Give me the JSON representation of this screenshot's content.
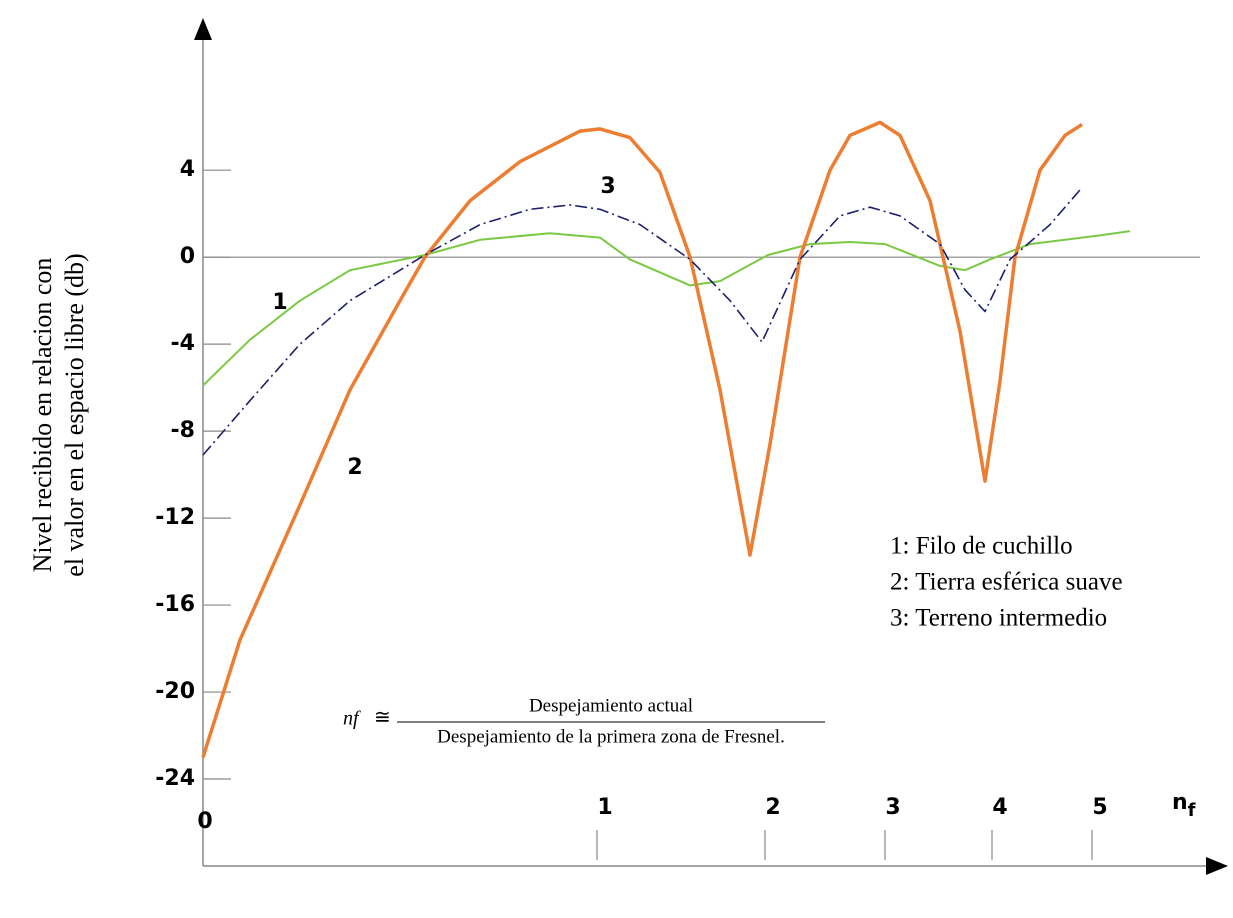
{
  "chart_data": {
    "type": "line",
    "y_label": [
      "Nivel recibido en relacion con",
      "el valor en el espacio libre (db)"
    ],
    "x_label": {
      "main": "n",
      "sub": "f"
    },
    "xlim": [
      0,
      6.3
    ],
    "ylim": [
      -28,
      11
    ],
    "xticks": [
      0,
      1,
      2,
      3,
      4,
      5
    ],
    "yticks": [
      4,
      0,
      -4,
      -8,
      -12,
      -16,
      -20,
      -24
    ],
    "zero_line": true,
    "series": [
      {
        "name": "1: Filo de cuchillo",
        "label": "1",
        "color": "#7ac943",
        "style": "solid",
        "x": [
          0,
          0.119,
          0.246,
          0.373,
          0.563,
          0.703,
          0.88,
          1.018,
          1.196,
          1.554,
          1.732,
          2.024,
          2.375,
          2.708,
          3.0,
          3.514,
          3.748,
          3.98,
          4.38,
          5.08,
          5.38
        ],
        "values": [
          -5.9,
          -3.8,
          -2.0,
          -0.6,
          0.1,
          0.8,
          1.1,
          0.9,
          -0.1,
          -1.3,
          -1.1,
          0.1,
          0.6,
          0.7,
          0.6,
          -0.4,
          -0.6,
          -0.1,
          0.6,
          1.0,
          1.2
        ]
      },
      {
        "name": "2: Tierra esférica suave",
        "label": "2",
        "color": "#ed7d31",
        "style": "solid",
        "x": [
          0,
          0.094,
          0.246,
          0.373,
          0.5,
          0.563,
          0.678,
          0.805,
          0.957,
          1.018,
          1.196,
          1.375,
          1.554,
          1.732,
          1.911,
          2.042,
          2.292,
          2.542,
          2.708,
          2.958,
          3.14,
          3.421,
          3.701,
          3.935,
          4.08,
          4.23,
          4.48,
          4.73,
          4.9
        ],
        "values": [
          -23.0,
          -17.6,
          -11.4,
          -6.1,
          -2.0,
          0,
          2.6,
          4.4,
          5.8,
          5.9,
          5.5,
          3.9,
          0,
          -6.1,
          -13.7,
          -8.6,
          0,
          4.0,
          5.6,
          6.2,
          5.6,
          2.6,
          -3.4,
          -10.3,
          -5.7,
          0,
          4.0,
          5.6,
          6.1
        ]
      },
      {
        "name": "3: Terreno intermedio",
        "label": "3",
        "color": "#1f1f6e",
        "style": "dashdot",
        "x": [
          0,
          0.119,
          0.246,
          0.373,
          0.563,
          0.703,
          0.83,
          0.931,
          1.018,
          1.256,
          1.554,
          1.792,
          1.982,
          2.292,
          2.625,
          2.875,
          3.14,
          3.514,
          3.748,
          3.935,
          4.18,
          4.58,
          4.9
        ],
        "values": [
          -9.1,
          -6.6,
          -4.0,
          -2.0,
          0.1,
          1.5,
          2.2,
          2.4,
          2.2,
          1.5,
          -0.1,
          -2.0,
          -3.9,
          -0.1,
          1.9,
          2.3,
          1.9,
          0.6,
          -1.5,
          -2.5,
          -0.1,
          1.5,
          3.2
        ]
      }
    ],
    "formula": {
      "lhs": "nf",
      "symbol": "≅",
      "numerator": "Despejamiento actual",
      "denominator": "Despejamiento de la primera zona de Fresnel."
    }
  }
}
